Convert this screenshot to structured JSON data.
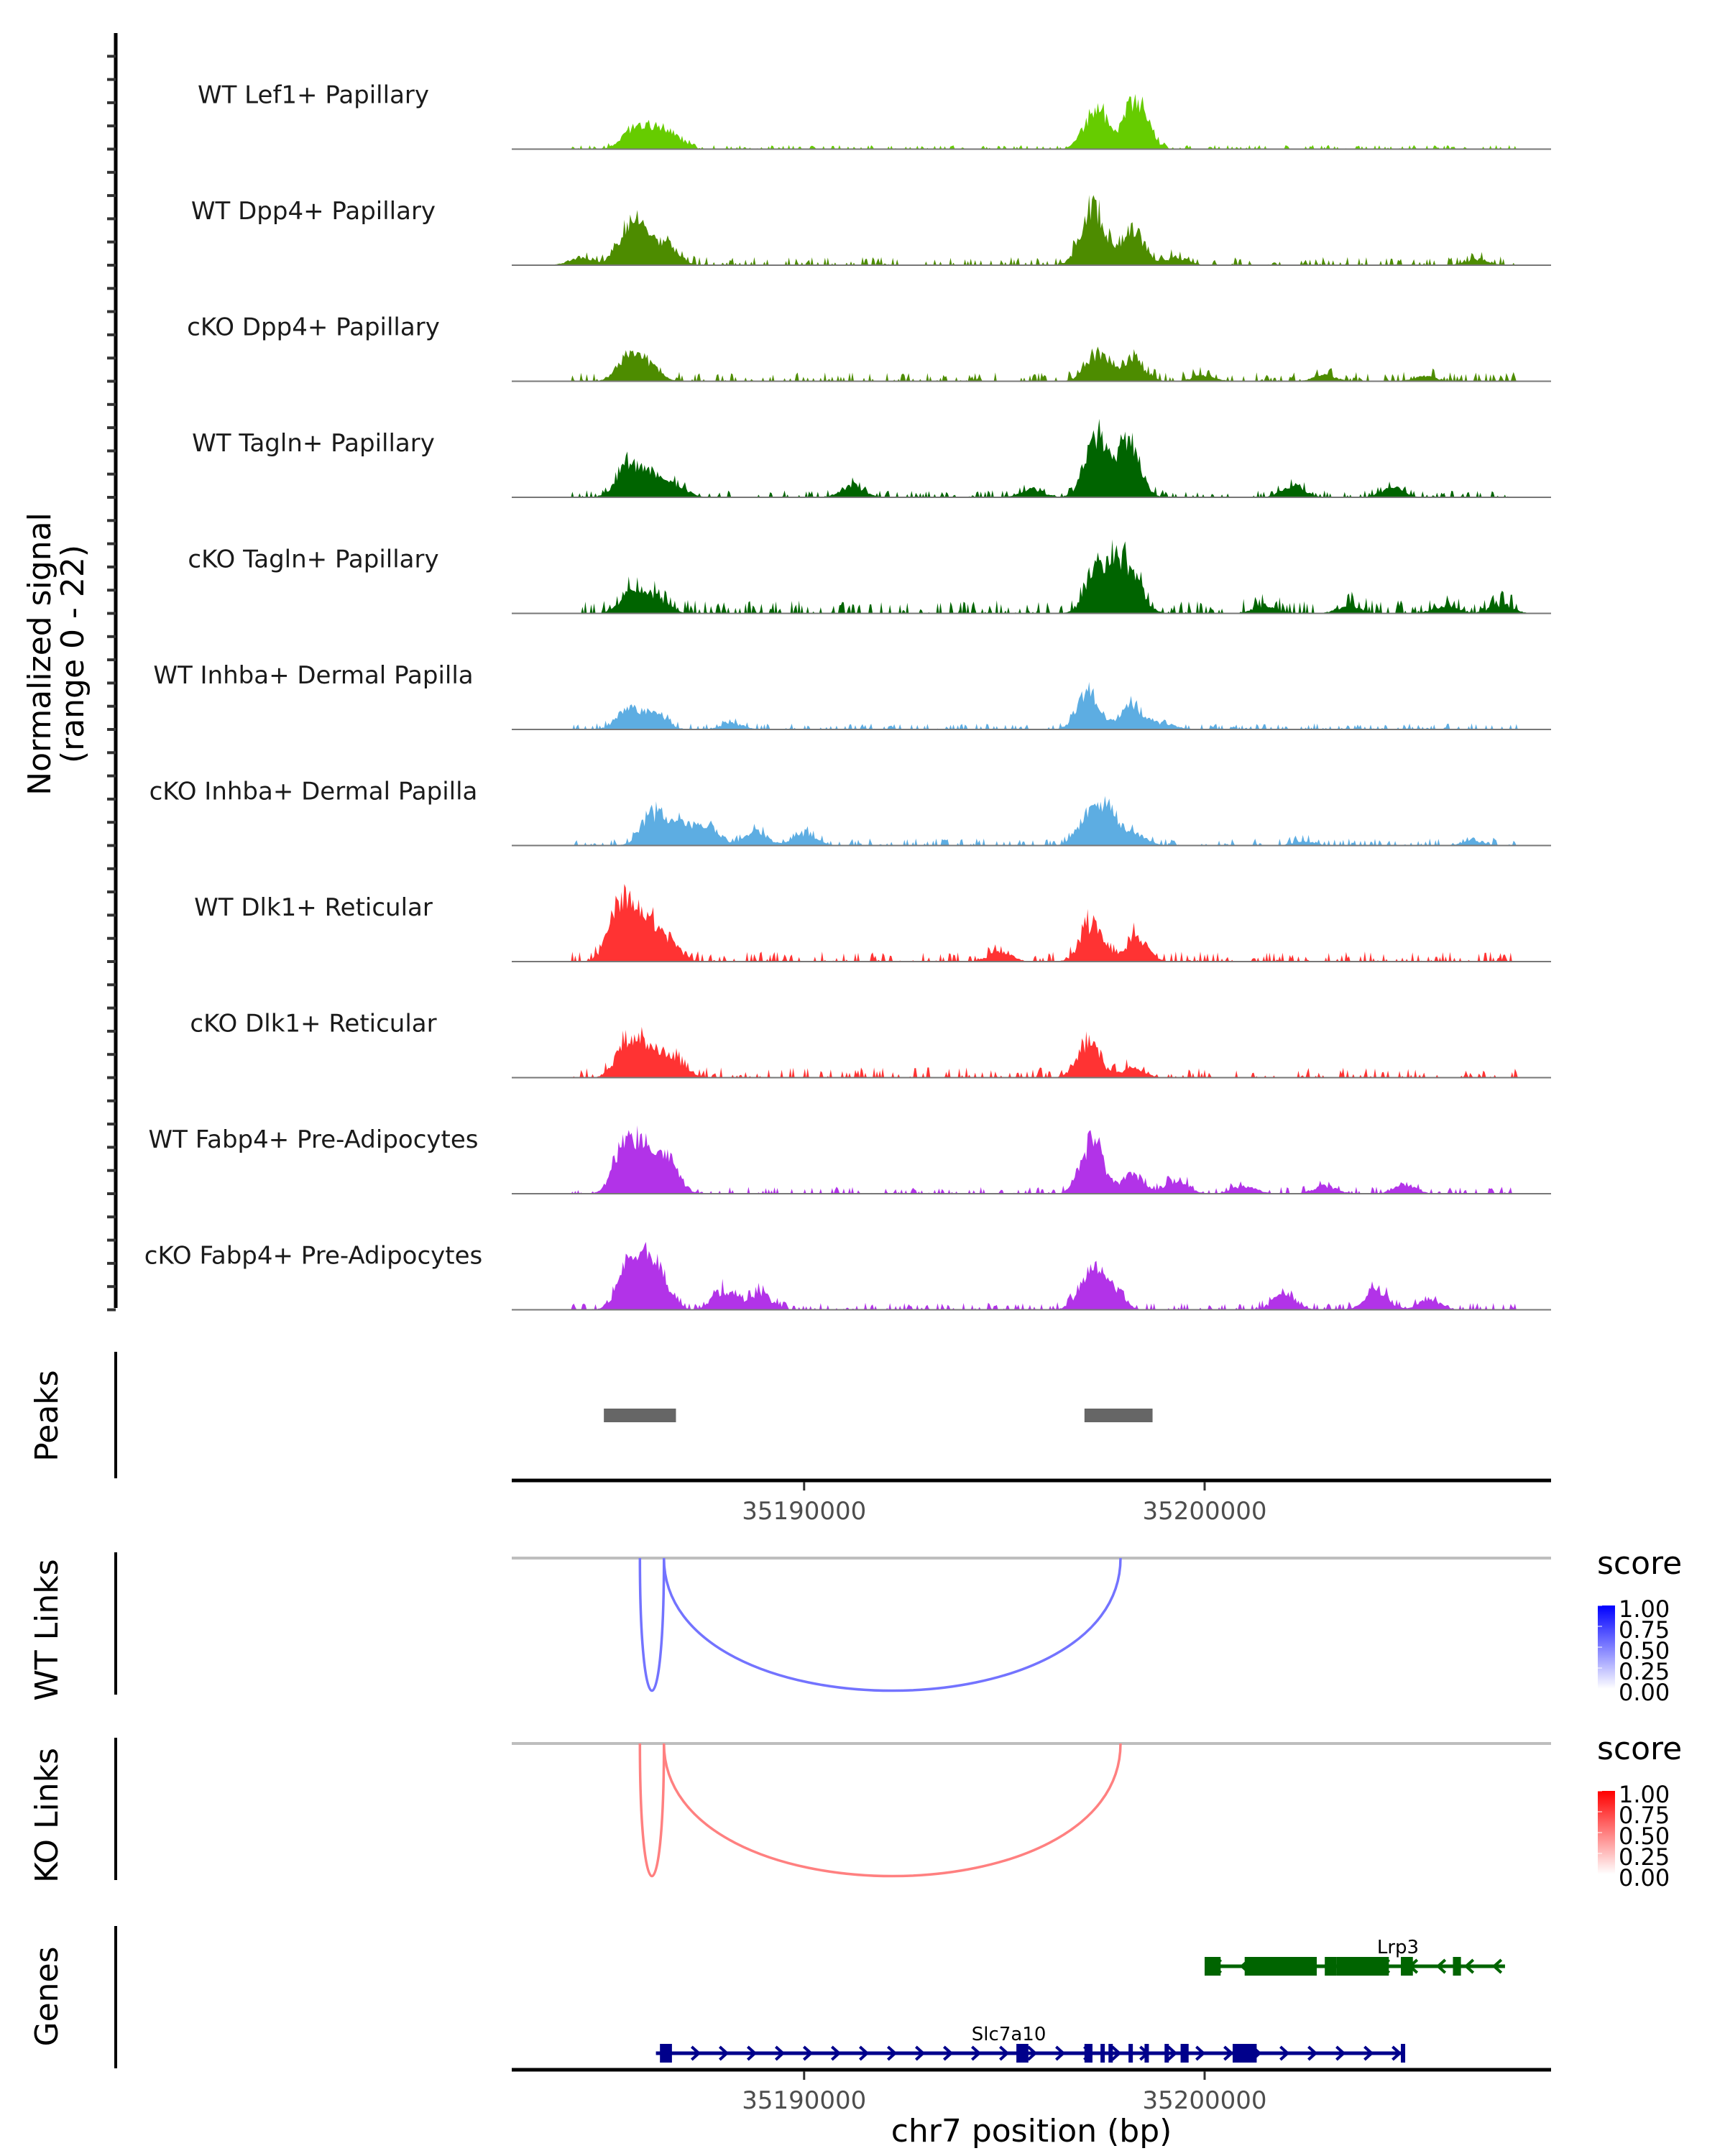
{
  "chart_data": {
    "type": "area",
    "title": "",
    "region": {
      "chrom": "chr7",
      "start": 35182700,
      "end": 35208650
    },
    "xlabel": "chr7 position (bp)",
    "xticks": [
      35190000,
      35200000
    ],
    "xtick_labels": [
      "35190000",
      "35200000"
    ],
    "coverage": {
      "ylabel_line1": "Normalized signal",
      "ylabel_line2": "(range 0 - 22)",
      "ylim": [
        0,
        22
      ],
      "tracks": [
        {
          "name": "WT Lef1+ Papillary",
          "color": "#66CC00",
          "peaks": [
            [
              35185700,
              4
            ],
            [
              35186200,
              4.5
            ],
            [
              35186700,
              3.5
            ],
            [
              35197300,
              11
            ],
            [
              35198300,
              13.5
            ]
          ],
          "noise": 0.4
        },
        {
          "name": "WT Dpp4+ Papillary",
          "color": "#4D8C00",
          "peaks": [
            [
              35184400,
              2
            ],
            [
              35185600,
              8
            ],
            [
              35186000,
              6
            ],
            [
              35186600,
              5
            ],
            [
              35197200,
              16
            ],
            [
              35198200,
              9
            ],
            [
              35199300,
              2
            ],
            [
              35206800,
              1.5
            ]
          ],
          "noise": 0.8
        },
        {
          "name": "cKO Dpp4+ Papillary",
          "color": "#4D8C00",
          "peaks": [
            [
              35185600,
              5.5
            ],
            [
              35186100,
              4
            ],
            [
              35197300,
              7
            ],
            [
              35198200,
              6
            ],
            [
              35200000,
              1.5
            ],
            [
              35203000,
              1.5
            ],
            [
              35205500,
              1.2
            ]
          ],
          "noise": 0.9
        },
        {
          "name": "WT Tagln+ Papillary",
          "color": "#006400",
          "peaks": [
            [
              35185600,
              9
            ],
            [
              35186200,
              5
            ],
            [
              35186800,
              3
            ],
            [
              35191200,
              3
            ],
            [
              35195700,
              2
            ],
            [
              35197300,
              15.5
            ],
            [
              35198100,
              14
            ],
            [
              35202200,
              3
            ],
            [
              35204700,
              2.5
            ]
          ],
          "noise": 0.7
        },
        {
          "name": "cKO Tagln+ Papillary",
          "color": "#006400",
          "peaks": [
            [
              35185700,
              5.5
            ],
            [
              35186300,
              4
            ],
            [
              35197300,
              10
            ],
            [
              35197800,
              8.5
            ],
            [
              35198200,
              8
            ],
            [
              35201500,
              2
            ],
            [
              35203600,
              2
            ],
            [
              35206000,
              2
            ],
            [
              35207400,
              2.2
            ]
          ],
          "noise": 1.3
        },
        {
          "name": "WT Inhba+ Dermal Papilla",
          "color": "#5DADE2",
          "peaks": [
            [
              35185600,
              5.5
            ],
            [
              35186300,
              4
            ],
            [
              35188200,
              1.5
            ],
            [
              35197100,
              9
            ],
            [
              35198200,
              6
            ],
            [
              35199000,
              1.5
            ]
          ],
          "noise": 0.6
        },
        {
          "name": "cKO Inhba+ Dermal Papilla",
          "color": "#5DADE2",
          "peaks": [
            [
              35186200,
              8
            ],
            [
              35186900,
              5.5
            ],
            [
              35187600,
              5
            ],
            [
              35188800,
              3.5
            ],
            [
              35190000,
              3
            ],
            [
              35197100,
              7
            ],
            [
              35197600,
              8.5
            ],
            [
              35198300,
              2.5
            ],
            [
              35202500,
              1
            ],
            [
              35206700,
              1
            ]
          ],
          "noise": 0.7
        },
        {
          "name": "WT Dlk1+ Reticular",
          "color": "#FF3333",
          "peaks": [
            [
              35185400,
              15
            ],
            [
              35186000,
              10
            ],
            [
              35186600,
              5.5
            ],
            [
              35197200,
              10
            ],
            [
              35198300,
              6
            ],
            [
              35194900,
              2.5
            ]
          ],
          "noise": 1.0
        },
        {
          "name": "cKO Dlk1+ Reticular",
          "color": "#FF3333",
          "peaks": [
            [
              35185600,
              9.5
            ],
            [
              35186200,
              6.5
            ],
            [
              35186800,
              4
            ],
            [
              35197100,
              9
            ],
            [
              35198200,
              2.5
            ]
          ],
          "noise": 1.0
        },
        {
          "name": "WT Fabp4+ Pre-Adipocytes",
          "color": "#B233E8",
          "peaks": [
            [
              35185500,
              10.5
            ],
            [
              35186000,
              10
            ],
            [
              35186600,
              8
            ],
            [
              35197200,
              13
            ],
            [
              35198200,
              4.5
            ],
            [
              35199300,
              3.5
            ],
            [
              35201000,
              2
            ],
            [
              35203000,
              2
            ],
            [
              35205000,
              2
            ]
          ],
          "noise": 0.7
        },
        {
          "name": "cKO Fabp4+ Pre-Adipocytes",
          "color": "#B233E8",
          "peaks": [
            [
              35185600,
              9.5
            ],
            [
              35186000,
              8.5
            ],
            [
              35186400,
              7
            ],
            [
              35188000,
              5
            ],
            [
              35188900,
              4
            ],
            [
              35197100,
              8
            ],
            [
              35197600,
              7
            ],
            [
              35202000,
              4
            ],
            [
              35204300,
              5
            ],
            [
              35205600,
              2.5
            ]
          ],
          "noise": 0.7
        }
      ]
    },
    "peaks_track": {
      "label": "Peaks",
      "color": "#666666",
      "ranges": [
        [
          35185000,
          35186800
        ],
        [
          35197000,
          35198700
        ]
      ]
    },
    "links": [
      {
        "label": "WT Links",
        "color_low": "#FFFFFF",
        "color_high": "#0000FF",
        "arcs": [
          {
            "start": 35185900,
            "end": 35186500,
            "score": 0.55
          },
          {
            "start": 35186500,
            "end": 35197900,
            "score": 0.55
          }
        ]
      },
      {
        "label": "KO Links",
        "color_low": "#FFFFFF",
        "color_high": "#FF0000",
        "arcs": [
          {
            "start": 35185900,
            "end": 35186500,
            "score": 0.5
          },
          {
            "start": 35186500,
            "end": 35197900,
            "score": 0.5
          }
        ]
      }
    ],
    "legends": [
      {
        "title": "score",
        "color_low": "#FFFFFF",
        "color_high": "#0000FF",
        "labels": [
          "1.00",
          "0.75",
          "0.50",
          "0.25",
          "0.00"
        ]
      },
      {
        "title": "score",
        "color_low": "#FFFFFF",
        "color_high": "#FF0000",
        "labels": [
          "1.00",
          "0.75",
          "0.50",
          "0.25",
          "0.00"
        ]
      }
    ],
    "genes": {
      "label": "Genes",
      "items": [
        {
          "name": "Lrp3",
          "strand": "-",
          "color": "#006400",
          "start": 35200000,
          "end": 35207500,
          "exons": [
            [
              35200000,
              35200400
            ],
            [
              35201000,
              35202800
            ],
            [
              35203000,
              35203300
            ],
            [
              35203300,
              35204600
            ],
            [
              35204900,
              35205200
            ],
            [
              35206200,
              35206400
            ]
          ]
        },
        {
          "name": "Slc7a10",
          "strand": "+",
          "color": "#00008B",
          "start": 35186300,
          "end": 35205000,
          "exons": [
            [
              35186400,
              35186700
            ],
            [
              35195300,
              35195600
            ],
            [
              35197000,
              35197200
            ],
            [
              35197400,
              35197500
            ],
            [
              35197600,
              35197700
            ],
            [
              35198100,
              35198200
            ],
            [
              35198500,
              35198600
            ],
            [
              35199000,
              35199100
            ],
            [
              35199400,
              35199600
            ],
            [
              35200700,
              35201300
            ],
            [
              35204900,
              35205000
            ]
          ]
        }
      ]
    }
  }
}
